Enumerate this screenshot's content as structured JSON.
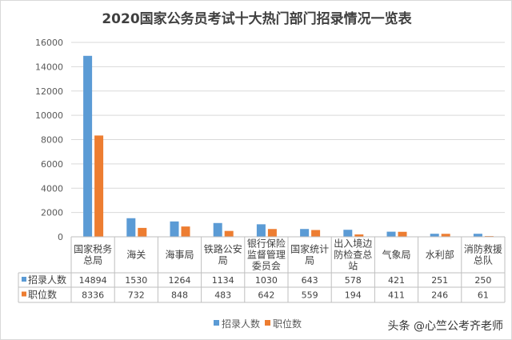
{
  "chart_data": {
    "type": "bar",
    "title": "2020国家公务员考试十大热门部门招录情况一览表",
    "categories": [
      [
        "国家税务",
        "总局"
      ],
      [
        "海关"
      ],
      [
        "海事局"
      ],
      [
        "铁路公安",
        "局"
      ],
      [
        "银行保险",
        "监督管理",
        "委员会"
      ],
      [
        "国家统计",
        "局"
      ],
      [
        "出入境边",
        "防检查总",
        "站"
      ],
      [
        "气象局"
      ],
      [
        "水利部"
      ],
      [
        "消防救援",
        "总队"
      ]
    ],
    "series": [
      {
        "name": "招录人数",
        "color": "#5b9bd5",
        "values": [
          14894,
          1530,
          1264,
          1134,
          1030,
          643,
          578,
          421,
          251,
          250
        ]
      },
      {
        "name": "职位数",
        "color": "#ed7d31",
        "values": [
          8336,
          732,
          848,
          483,
          642,
          559,
          194,
          411,
          246,
          61
        ]
      }
    ],
    "ylim": [
      0,
      16000
    ],
    "yticks": [
      0,
      2000,
      4000,
      6000,
      8000,
      10000,
      12000,
      14000,
      16000
    ],
    "grid": true,
    "legend": "bottom",
    "data_table": true
  },
  "watermark": "头条 @心竺公考齐老师"
}
